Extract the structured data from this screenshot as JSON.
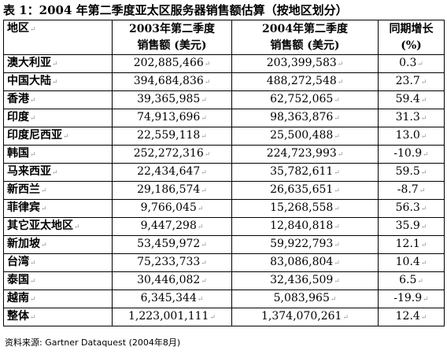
{
  "title": "表 1：2004 年第二季度亚太区服务器销售额估算（按地区划分）",
  "table": {
    "headers": {
      "region": "地区",
      "y2003_line1": "2003年第二季度",
      "y2003_line2": "销售额 (美元)",
      "y2004_line1": "2004年第二季度",
      "y2004_line2": "销售额 (美元)",
      "growth_line1": "同期增长",
      "growth_line2": "(%)"
    },
    "paragraph_mark": "↵",
    "rows": [
      {
        "region": "澳大利亚",
        "sales_2003": "202,885,466",
        "sales_2004": "203,399,583",
        "growth": "0.3"
      },
      {
        "region": "中国大陆",
        "sales_2003": "394,684,836",
        "sales_2004": "488,272,548",
        "growth": "23.7"
      },
      {
        "region": "香港",
        "sales_2003": "39,365,985",
        "sales_2004": "62,752,065",
        "growth": "59.4"
      },
      {
        "region": "印度",
        "sales_2003": "74,913,696",
        "sales_2004": "98,363,876",
        "growth": "31.3"
      },
      {
        "region": "印度尼西亚",
        "sales_2003": "22,559,118",
        "sales_2004": "25,500,488",
        "growth": "13.0"
      },
      {
        "region": "韩国",
        "sales_2003": "252,272,316",
        "sales_2004": "224,723,993",
        "growth": "-10.9"
      },
      {
        "region": "马来西亚",
        "sales_2003": "22,434,647",
        "sales_2004": "35,782,611",
        "growth": "59.5"
      },
      {
        "region": "新西兰",
        "sales_2003": "29,186,574",
        "sales_2004": "26,635,651",
        "growth": "-8.7"
      },
      {
        "region": "菲律宾",
        "sales_2003": "9,766,045",
        "sales_2004": "15,268,558",
        "growth": "56.3"
      },
      {
        "region": "其它亚太地区",
        "sales_2003": "9,447,298",
        "sales_2004": "12,840,818",
        "growth": "35.9"
      },
      {
        "region": "新加坡",
        "sales_2003": "53,459,972",
        "sales_2004": "59,922,793",
        "growth": "12.1"
      },
      {
        "region": "台湾",
        "sales_2003": "75,233,733",
        "sales_2004": "83,086,804",
        "growth": "10.4"
      },
      {
        "region": "泰国",
        "sales_2003": "30,446,082",
        "sales_2004": "32,436,509",
        "growth": "6.5"
      },
      {
        "region": "越南",
        "sales_2003": "6,345,344",
        "sales_2004": "5,083,965",
        "growth": "-19.9"
      },
      {
        "region": "整体",
        "sales_2003": "1,223,001,111",
        "sales_2004": "1,374,070,261",
        "growth": "12.4"
      }
    ]
  },
  "source": "资料来源: Gartner Dataquest (2004年8月)"
}
